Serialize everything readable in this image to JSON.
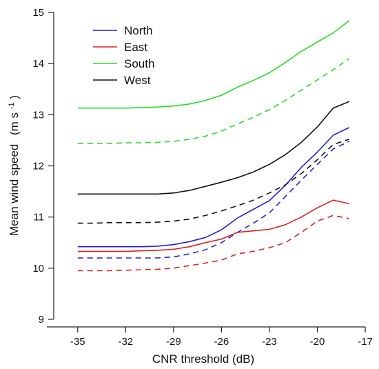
{
  "chart_data": {
    "type": "line",
    "title": "",
    "xlabel": "CNR threshold (dB)",
    "ylabel": "Mean wind speed",
    "ylabel_unit": "(m s",
    "ylabel_exp": "-1",
    "ylabel_close": ")",
    "xlim": [
      -36.5,
      -17
    ],
    "ylim": [
      9,
      15
    ],
    "xticks": [
      -35,
      -32,
      -29,
      -26,
      -23,
      -20,
      -17
    ],
    "yticks": [
      9,
      10,
      11,
      12,
      13,
      14,
      15
    ],
    "legend_position": "top-left",
    "legend": [
      "North",
      "East",
      "South",
      "West"
    ],
    "x": [
      -35,
      -34,
      -33,
      -32,
      -31,
      -30,
      -29,
      -28,
      -27,
      -26,
      -25,
      -24,
      -23,
      -22,
      -21,
      -20,
      -19,
      -18
    ],
    "series": [
      {
        "name": "North",
        "style": "solid",
        "color": "#1f1fe0",
        "values": [
          10.42,
          10.42,
          10.42,
          10.42,
          10.42,
          10.43,
          10.46,
          10.52,
          10.6,
          10.75,
          10.98,
          11.15,
          11.32,
          11.62,
          11.97,
          12.27,
          12.6,
          12.75
        ]
      },
      {
        "name": "North",
        "style": "dashed",
        "color": "#1f1fe0",
        "values": [
          10.2,
          10.2,
          10.2,
          10.2,
          10.2,
          10.2,
          10.22,
          10.28,
          10.36,
          10.5,
          10.7,
          10.88,
          11.08,
          11.4,
          11.72,
          12.03,
          12.33,
          12.48
        ]
      },
      {
        "name": "East",
        "style": "solid",
        "color": "#e01f1f",
        "values": [
          10.33,
          10.33,
          10.33,
          10.33,
          10.34,
          10.35,
          10.37,
          10.42,
          10.5,
          10.57,
          10.7,
          10.73,
          10.76,
          10.85,
          11.0,
          11.18,
          11.33,
          11.26
        ]
      },
      {
        "name": "East",
        "style": "dashed",
        "color": "#e01f1f",
        "values": [
          9.95,
          9.95,
          9.95,
          9.96,
          9.97,
          9.98,
          10.0,
          10.05,
          10.1,
          10.16,
          10.28,
          10.33,
          10.4,
          10.5,
          10.7,
          10.92,
          11.03,
          10.97
        ]
      },
      {
        "name": "South",
        "style": "solid",
        "color": "#22e022",
        "values": [
          13.13,
          13.13,
          13.13,
          13.13,
          13.14,
          13.15,
          13.17,
          13.21,
          13.28,
          13.38,
          13.54,
          13.67,
          13.82,
          14.02,
          14.24,
          14.42,
          14.6,
          14.84
        ]
      },
      {
        "name": "South",
        "style": "dashed",
        "color": "#22e022",
        "values": [
          12.44,
          12.44,
          12.44,
          12.45,
          12.45,
          12.46,
          12.48,
          12.52,
          12.58,
          12.68,
          12.82,
          12.95,
          13.1,
          13.28,
          13.48,
          13.68,
          13.88,
          14.1
        ]
      },
      {
        "name": "West",
        "style": "solid",
        "color": "#111111",
        "values": [
          11.45,
          11.45,
          11.45,
          11.45,
          11.45,
          11.45,
          11.47,
          11.52,
          11.6,
          11.68,
          11.77,
          11.88,
          12.03,
          12.22,
          12.46,
          12.76,
          13.13,
          13.26
        ]
      },
      {
        "name": "West",
        "style": "dashed",
        "color": "#111111",
        "values": [
          10.88,
          10.88,
          10.89,
          10.89,
          10.89,
          10.9,
          10.92,
          10.96,
          11.03,
          11.12,
          11.22,
          11.33,
          11.47,
          11.63,
          11.85,
          12.12,
          12.42,
          12.52
        ]
      }
    ]
  }
}
